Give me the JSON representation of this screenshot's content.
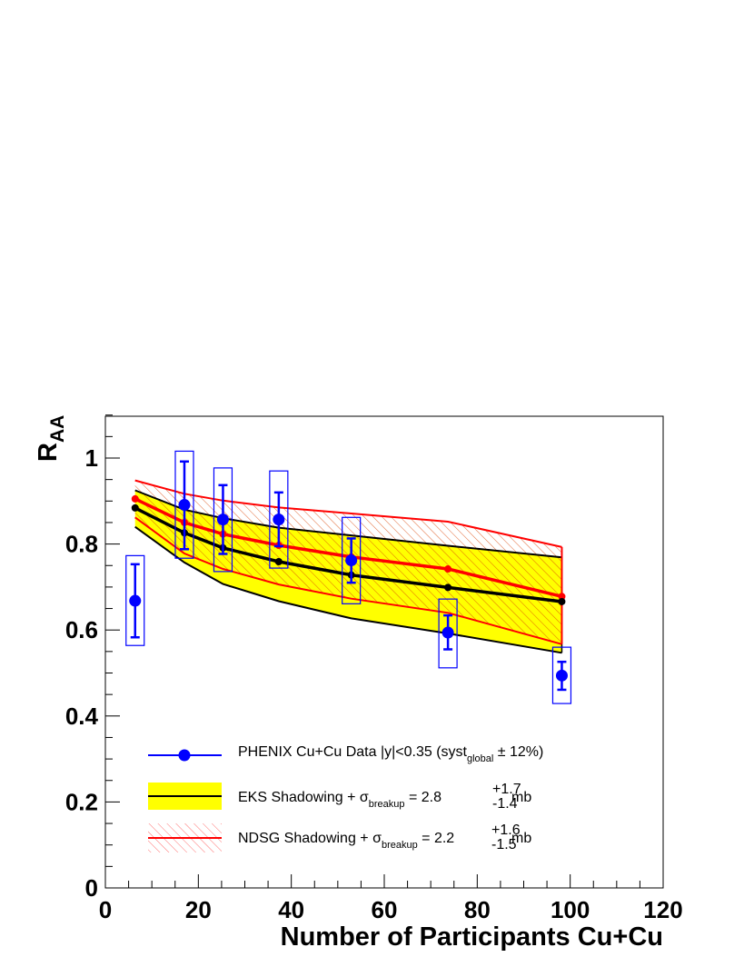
{
  "chart_data": {
    "type": "scatter",
    "xlabel": "Number of Participants Cu+Cu",
    "ylabel_main": "R",
    "ylabel_sub": "AA",
    "xlim": [
      0,
      120
    ],
    "ylim": [
      0,
      1.1
    ],
    "x_ticks": [
      "0",
      "20",
      "40",
      "60",
      "80",
      "100",
      "120"
    ],
    "y_ticks": [
      "0",
      "0.2",
      "0.4",
      "0.6",
      "0.8",
      "1"
    ],
    "grid": false,
    "legend_position": "bottom-left",
    "data_points": {
      "name": "PHENIX Cu+Cu Data |y|<0.35 (syst_global ± 12%)",
      "color": "#0000ff",
      "points": [
        {
          "x": 6.4,
          "y": 0.668,
          "stat_lo": 0.583,
          "stat_hi": 0.753,
          "sys_lo": 0.564,
          "sys_hi": 0.773
        },
        {
          "x": 17.0,
          "y": 0.891,
          "stat_lo": 0.788,
          "stat_hi": 0.992,
          "sys_lo": 0.767,
          "sys_hi": 1.016
        },
        {
          "x": 25.3,
          "y": 0.857,
          "stat_lo": 0.777,
          "stat_hi": 0.937,
          "sys_lo": 0.736,
          "sys_hi": 0.977
        },
        {
          "x": 37.3,
          "y": 0.857,
          "stat_lo": 0.795,
          "stat_hi": 0.92,
          "sys_lo": 0.744,
          "sys_hi": 0.97
        },
        {
          "x": 52.9,
          "y": 0.762,
          "stat_lo": 0.71,
          "stat_hi": 0.813,
          "sys_lo": 0.661,
          "sys_hi": 0.862
        },
        {
          "x": 73.7,
          "y": 0.594,
          "stat_lo": 0.555,
          "stat_hi": 0.634,
          "sys_lo": 0.512,
          "sys_hi": 0.672
        },
        {
          "x": 98.2,
          "y": 0.494,
          "stat_lo": 0.461,
          "stat_hi": 0.526,
          "sys_lo": 0.429,
          "sys_hi": 0.56
        }
      ]
    },
    "eks": {
      "name": "EKS Shadowing + σ_breakup = 2.8 +1.7/-1.4 mb",
      "line_color": "#000000",
      "band_color": "#ffff00",
      "x": [
        6.4,
        17.0,
        25.3,
        37.3,
        52.9,
        73.7,
        98.2
      ],
      "central": [
        0.884,
        0.826,
        0.791,
        0.759,
        0.728,
        0.699,
        0.666
      ],
      "upper": [
        0.925,
        0.88,
        0.86,
        0.838,
        0.82,
        0.796,
        0.769
      ],
      "lower": [
        0.84,
        0.757,
        0.707,
        0.667,
        0.627,
        0.592,
        0.547
      ]
    },
    "ndsg": {
      "name": "NDSG Shadowing + σ_breakup = 2.2 +1.6/-1.5 mb",
      "line_color": "#ff0000",
      "hatch_color": "#ff0000",
      "x": [
        6.4,
        17.0,
        25.3,
        37.3,
        52.9,
        73.7,
        98.2
      ],
      "central": [
        0.905,
        0.85,
        0.823,
        0.797,
        0.77,
        0.742,
        0.678
      ],
      "upper": [
        0.948,
        0.917,
        0.901,
        0.885,
        0.871,
        0.852,
        0.793
      ],
      "lower": [
        0.862,
        0.778,
        0.742,
        0.706,
        0.673,
        0.64,
        0.567
      ]
    },
    "legend": [
      {
        "key": "phenix",
        "text": "PHENIX Cu+Cu Data |y|<0.35 (syst",
        "sub": "global",
        "tail": " ± 12%)"
      },
      {
        "key": "eks",
        "text": "EKS Shadowing + σ",
        "sub": "breakup",
        "mid": " = 2.8 ",
        "sup_up": "+1.7",
        "sup_dn": "-1.4",
        "tail": " mb"
      },
      {
        "key": "ndsg",
        "text": "NDSG Shadowing + σ",
        "sub": "breakup",
        "mid": " = 2.2 ",
        "sup_up": "+1.6",
        "sup_dn": "-1.5",
        "tail": " mb"
      }
    ]
  }
}
